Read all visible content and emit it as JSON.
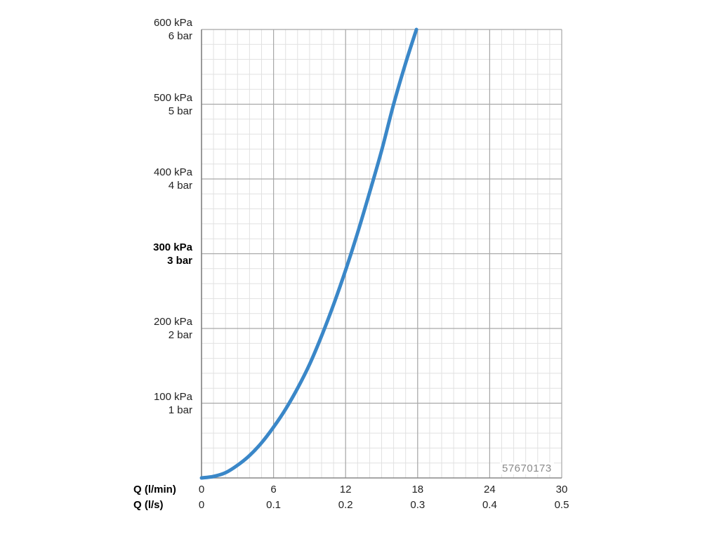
{
  "chart_data": {
    "type": "line",
    "y_axis": {
      "range_kpa": [
        0,
        600
      ],
      "ticks": [
        {
          "value": 100,
          "kpa": "100 kPa",
          "bar": "1 bar",
          "bold": false
        },
        {
          "value": 200,
          "kpa": "200 kPa",
          "bar": "2 bar",
          "bold": false
        },
        {
          "value": 300,
          "kpa": "300 kPa",
          "bar": "3 bar",
          "bold": true
        },
        {
          "value": 400,
          "kpa": "400 kPa",
          "bar": "4 bar",
          "bold": false
        },
        {
          "value": 500,
          "kpa": "500 kPa",
          "bar": "5 bar",
          "bold": false
        },
        {
          "value": 600,
          "kpa": "600 kPa",
          "bar": "6 bar",
          "bold": false
        }
      ]
    },
    "x_axis": {
      "range_lmin": [
        0,
        30
      ],
      "primary_label": "Q (l/min)",
      "secondary_label": "Q (l/s)",
      "ticks": [
        {
          "value": 0,
          "lmin": "0",
          "ls": "0"
        },
        {
          "value": 6,
          "lmin": "6",
          "ls": "0.1"
        },
        {
          "value": 12,
          "lmin": "12",
          "ls": "0.2"
        },
        {
          "value": 18,
          "lmin": "18",
          "ls": "0.3"
        },
        {
          "value": 24,
          "lmin": "24",
          "ls": "0.4"
        },
        {
          "value": 30,
          "lmin": "30",
          "ls": "0.5"
        }
      ]
    },
    "grid": true,
    "series": [
      {
        "color": "#3a87c8",
        "points": [
          [
            0,
            0
          ],
          [
            1,
            2
          ],
          [
            2,
            7
          ],
          [
            3,
            17
          ],
          [
            4,
            30
          ],
          [
            5,
            47
          ],
          [
            6,
            68
          ],
          [
            7,
            92
          ],
          [
            8,
            120
          ],
          [
            9,
            152
          ],
          [
            10,
            190
          ],
          [
            11,
            232
          ],
          [
            12,
            278
          ],
          [
            13,
            328
          ],
          [
            14,
            382
          ],
          [
            15,
            438
          ],
          [
            16,
            500
          ],
          [
            17,
            555
          ],
          [
            17.9,
            600
          ]
        ]
      }
    ]
  },
  "product_code": "57670173"
}
